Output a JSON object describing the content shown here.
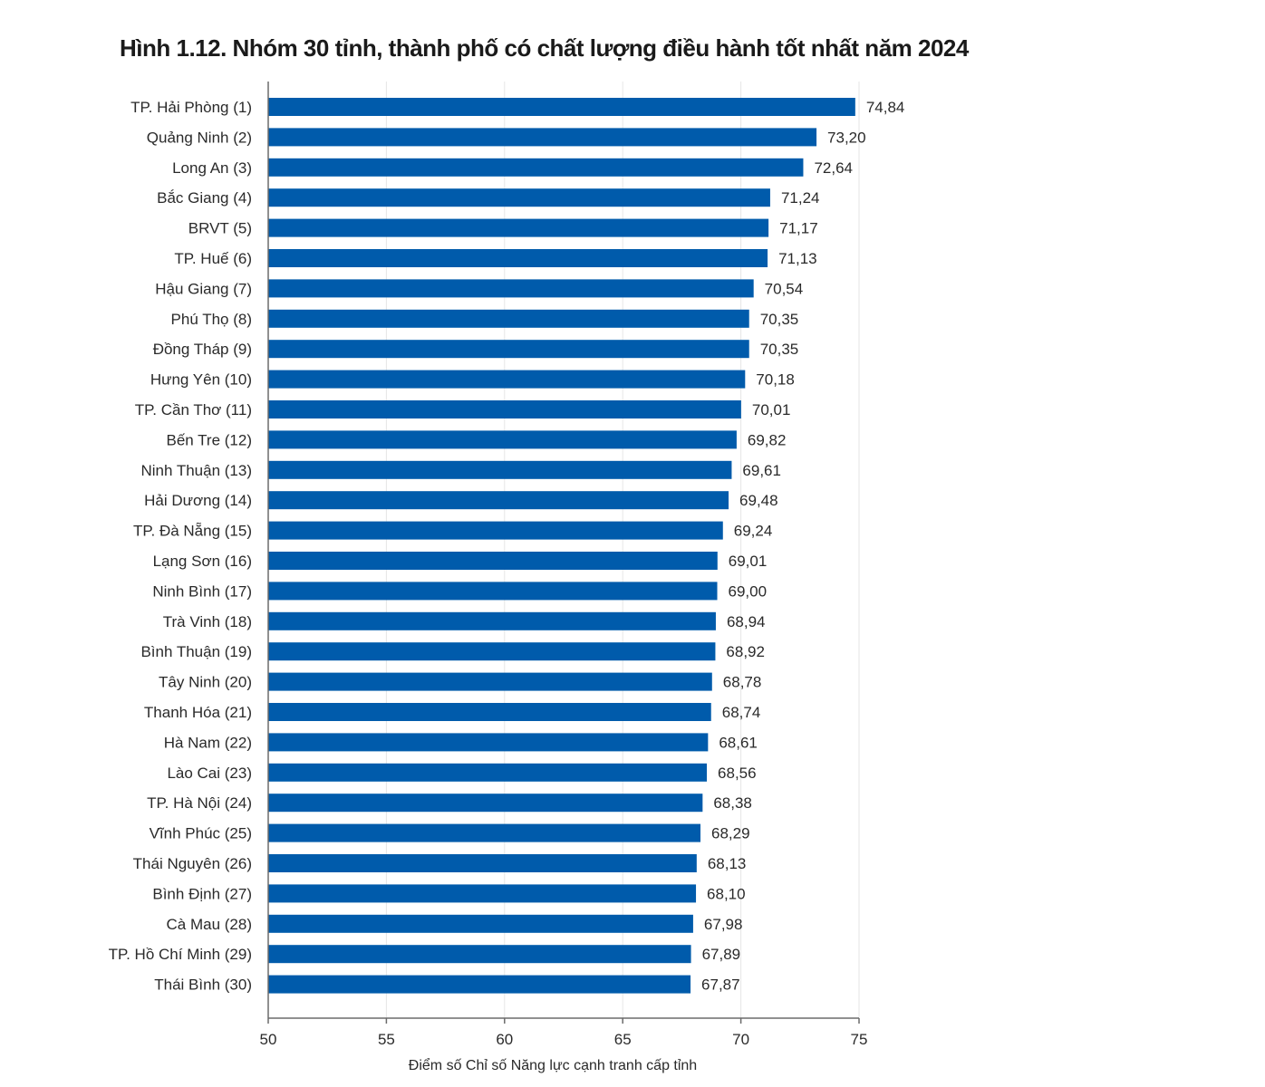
{
  "chart_data": {
    "type": "bar",
    "orientation": "horizontal",
    "title": "Hình 1.12. Nhóm 30 tỉnh, thành phố có chất lượng điều hành tốt nhất năm 2024",
    "xlabel": "Điểm số Chỉ số Năng lực cạnh tranh cấp tỉnh",
    "ylabel": "",
    "xlim": [
      50,
      75
    ],
    "xticks": [
      50,
      55,
      60,
      65,
      70,
      75
    ],
    "grid": true,
    "legend": "none",
    "bar_color": "#005bab",
    "categories": [
      "TP. Hải Phòng (1)",
      "Quảng Ninh (2)",
      "Long An (3)",
      "Bắc Giang (4)",
      "BRVT (5)",
      "TP. Huế (6)",
      "Hậu Giang (7)",
      "Phú Thọ (8)",
      "Đồng Tháp (9)",
      "Hưng Yên (10)",
      "TP. Cần Thơ (11)",
      "Bến Tre (12)",
      "Ninh Thuận (13)",
      "Hải Dương (14)",
      "TP. Đà Nẵng (15)",
      "Lạng Sơn (16)",
      "Ninh Bình (17)",
      "Trà Vinh (18)",
      "Bình Thuận (19)",
      "Tây Ninh (20)",
      "Thanh Hóa (21)",
      "Hà Nam (22)",
      "Lào Cai (23)",
      "TP. Hà Nội (24)",
      "Vĩnh Phúc (25)",
      "Thái Nguyên (26)",
      "Bình Định (27)",
      "Cà Mau (28)",
      "TP. Hồ Chí Minh (29)",
      "Thái Bình (30)"
    ],
    "values": [
      74.84,
      73.2,
      72.64,
      71.24,
      71.17,
      71.13,
      70.54,
      70.35,
      70.35,
      70.18,
      70.01,
      69.82,
      69.61,
      69.48,
      69.24,
      69.01,
      69.0,
      68.94,
      68.92,
      68.78,
      68.74,
      68.61,
      68.56,
      68.38,
      68.29,
      68.13,
      68.1,
      67.98,
      67.89,
      67.87
    ],
    "value_labels": [
      "74,84",
      "73,20",
      "72,64",
      "71,24",
      "71,17",
      "71,13",
      "70,54",
      "70,35",
      "70,35",
      "70,18",
      "70,01",
      "69,82",
      "69,61",
      "69,48",
      "69,24",
      "69,01",
      "69,00",
      "68,94",
      "68,92",
      "68,78",
      "68,74",
      "68,61",
      "68,56",
      "68,38",
      "68,29",
      "68,13",
      "68,10",
      "67,98",
      "67,89",
      "67,87"
    ]
  }
}
